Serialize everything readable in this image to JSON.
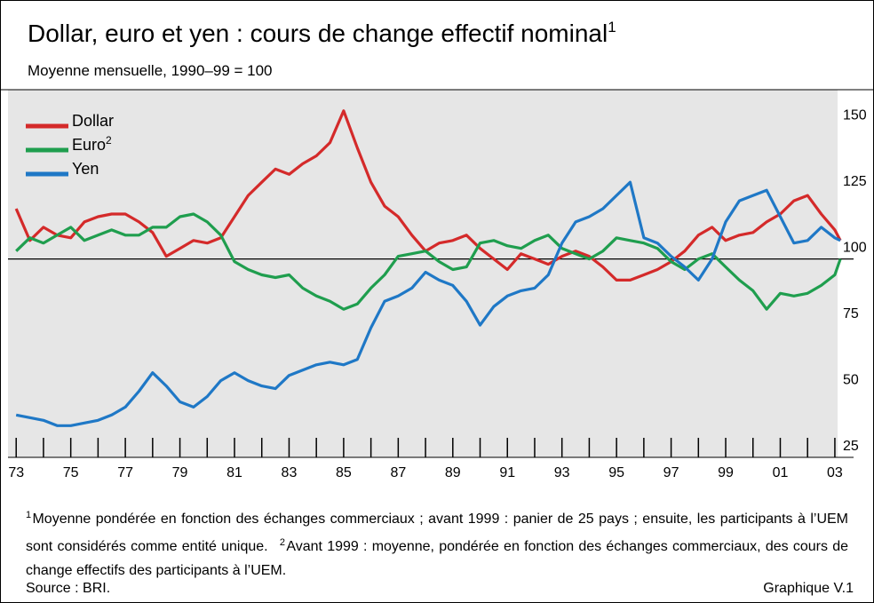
{
  "chart_data": {
    "type": "line",
    "title": "Dollar, euro et yen : cours de change effectif nominal",
    "title_note": "1",
    "subtitle": "Moyenne mensuelle, 1990–99 = 100",
    "x": [
      1973,
      1973.5,
      1974,
      1974.5,
      1975,
      1975.5,
      1976,
      1976.5,
      1977,
      1977.5,
      1978,
      1978.5,
      1979,
      1979.5,
      1980,
      1980.5,
      1981,
      1981.5,
      1982,
      1982.5,
      1983,
      1983.5,
      1984,
      1984.5,
      1985,
      1985.5,
      1986,
      1986.5,
      1987,
      1987.5,
      1988,
      1988.5,
      1989,
      1989.5,
      1990,
      1990.5,
      1991,
      1991.5,
      1992,
      1992.5,
      1993,
      1993.5,
      1994,
      1994.5,
      1995,
      1995.5,
      1996,
      1996.5,
      1997,
      1997.5,
      1998,
      1998.5,
      1999,
      1999.5,
      2000,
      2000.5,
      2001,
      2001.5,
      2002,
      2002.5,
      2003,
      2003.2
    ],
    "series": [
      {
        "name": "Dollar",
        "color": "#d42a2a",
        "values": [
          119,
          107,
          112,
          109,
          108,
          114,
          116,
          117,
          117,
          114,
          110,
          101,
          104,
          107,
          106,
          108,
          116,
          124,
          129,
          134,
          132,
          136,
          139,
          144,
          156,
          142,
          129,
          120,
          116,
          109,
          103,
          106,
          107,
          109,
          104,
          100,
          96,
          102,
          100,
          98,
          101,
          103,
          101,
          97,
          92,
          92,
          94,
          96,
          99,
          103,
          109,
          112,
          107,
          109,
          110,
          114,
          117,
          122,
          124,
          117,
          111,
          107
        ]
      },
      {
        "name": "Euro",
        "note": "2",
        "color": "#1f9e4e",
        "values": [
          103,
          108,
          106,
          109,
          112,
          107,
          109,
          111,
          109,
          109,
          112,
          112,
          116,
          117,
          114,
          109,
          99,
          96,
          94,
          93,
          94,
          89,
          86,
          84,
          81,
          83,
          89,
          94,
          101,
          102,
          103,
          99,
          96,
          97,
          106,
          107,
          105,
          104,
          107,
          109,
          104,
          102,
          100,
          103,
          108,
          107,
          106,
          104,
          99,
          96,
          100,
          102,
          97,
          92,
          88,
          81,
          87,
          86,
          87,
          90,
          94,
          100
        ]
      },
      {
        "name": "Yen",
        "color": "#1f78c6",
        "values": [
          41,
          40,
          39,
          37,
          37,
          38,
          39,
          41,
          44,
          50,
          57,
          52,
          46,
          44,
          48,
          54,
          57,
          54,
          52,
          51,
          56,
          58,
          60,
          61,
          60,
          62,
          74,
          84,
          86,
          89,
          95,
          92,
          90,
          84,
          75,
          82,
          86,
          88,
          89,
          94,
          106,
          114,
          116,
          119,
          124,
          129,
          108,
          106,
          101,
          97,
          92,
          100,
          114,
          122,
          124,
          126,
          116,
          106,
          107,
          112,
          108,
          107
        ]
      }
    ],
    "xlim": [
      1972.7,
      2003.1
    ],
    "xticks": [
      {
        "value": 1973,
        "label": "73"
      },
      {
        "value": 1975,
        "label": "75"
      },
      {
        "value": 1977,
        "label": "77"
      },
      {
        "value": 1979,
        "label": "79"
      },
      {
        "value": 1981,
        "label": "81"
      },
      {
        "value": 1983,
        "label": "83"
      },
      {
        "value": 1985,
        "label": "85"
      },
      {
        "value": 1987,
        "label": "87"
      },
      {
        "value": 1989,
        "label": "89"
      },
      {
        "value": 1991,
        "label": "91"
      },
      {
        "value": 1993,
        "label": "93"
      },
      {
        "value": 1995,
        "label": "95"
      },
      {
        "value": 1997,
        "label": "97"
      },
      {
        "value": 1999,
        "label": "99"
      },
      {
        "value": 2001,
        "label": "01"
      },
      {
        "value": 2003,
        "label": "03"
      }
    ],
    "xminor_ticks": [
      1974,
      1976,
      1978,
      1980,
      1982,
      1984,
      1986,
      1988,
      1990,
      1992,
      1994,
      1996,
      1998,
      2000,
      2002
    ],
    "ylim": [
      25,
      164
    ],
    "yticks": [
      25,
      50,
      75,
      100,
      125,
      150
    ],
    "reference_line": 100,
    "legend": "top-left",
    "footnotes": [
      {
        "mark": "1",
        "text": "Moyenne pondérée en fonction des échanges commerciaux ; avant 1999 : panier de 25 pays ; ensuite, les participants à l’UEM sont considérés comme entité unique."
      },
      {
        "mark": "2",
        "text": "Avant 1999 : moyenne, pondérée en fonction des échanges commerciaux, des cours de change effectifs des participants à l’UEM."
      }
    ],
    "source": "Source : BRI.",
    "figure_label": "Graphique V.1"
  }
}
